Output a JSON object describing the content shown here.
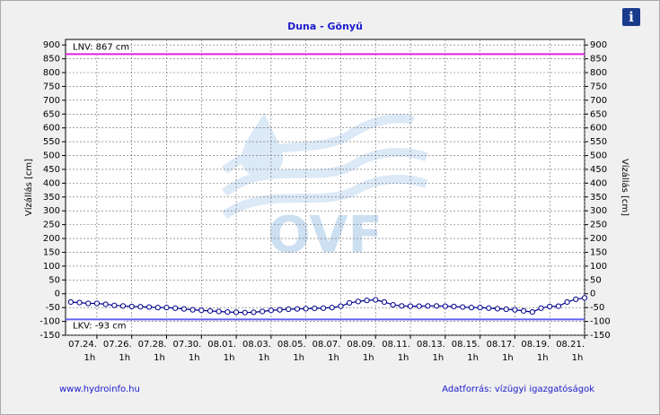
{
  "chart_data": {
    "type": "line",
    "title": "Duna - Gönyű",
    "ylabel": "Vízállás [cm]",
    "y2label": "Vízállás [cm]",
    "watermark": "OVF",
    "footer_left": "www.hydroinfo.hu",
    "footer_right": "Adatforrás: vízügyi igazgatóságok",
    "info_icon": "i",
    "xlim": [
      22.2,
      52
    ],
    "xticks": [
      {
        "value": 24,
        "label": "07.24.",
        "sublabel": "1h"
      },
      {
        "value": 26,
        "label": "07.26.",
        "sublabel": "1h"
      },
      {
        "value": 28,
        "label": "07.28.",
        "sublabel": "1h"
      },
      {
        "value": 30,
        "label": "07.30.",
        "sublabel": "1h"
      },
      {
        "value": 32,
        "label": "08.01.",
        "sublabel": "1h"
      },
      {
        "value": 34,
        "label": "08.03.",
        "sublabel": "1h"
      },
      {
        "value": 36,
        "label": "08.05.",
        "sublabel": "1h"
      },
      {
        "value": 38,
        "label": "08.07.",
        "sublabel": "1h"
      },
      {
        "value": 40,
        "label": "08.09.",
        "sublabel": "1h"
      },
      {
        "value": 42,
        "label": "08.11.",
        "sublabel": "1h"
      },
      {
        "value": 44,
        "label": "08.13.",
        "sublabel": "1h"
      },
      {
        "value": 46,
        "label": "08.15.",
        "sublabel": "1h"
      },
      {
        "value": 48,
        "label": "08.17.",
        "sublabel": "1h"
      },
      {
        "value": 50,
        "label": "08.19.",
        "sublabel": "1h"
      },
      {
        "value": 52,
        "label": "08.21.",
        "sublabel": "1h"
      }
    ],
    "ylim": [
      -150,
      920
    ],
    "yticks": [
      900,
      850,
      800,
      750,
      700,
      650,
      600,
      550,
      500,
      450,
      400,
      350,
      300,
      250,
      200,
      150,
      100,
      50,
      0,
      -50,
      -100,
      -150
    ],
    "y2lim": [
      -150,
      920
    ],
    "y2ticks": [
      900,
      850,
      800,
      750,
      700,
      650,
      600,
      550,
      500,
      450,
      400,
      350,
      300,
      250,
      200,
      150,
      100,
      50,
      0,
      -50,
      -100,
      -150
    ],
    "grid": true,
    "reference_lines": [
      {
        "label": "LNV: 867 cm",
        "value": 867,
        "color": "#e020e0"
      },
      {
        "label": "LKV: -93 cm",
        "value": -93,
        "color": "#6060f0"
      }
    ],
    "x": [
      22.5,
      23,
      23.5,
      24,
      24.5,
      25,
      25.5,
      26,
      26.5,
      27,
      27.5,
      28,
      28.5,
      29,
      29.5,
      30,
      30.5,
      31,
      31.5,
      32,
      32.5,
      33,
      33.5,
      34,
      34.5,
      35,
      35.5,
      36,
      36.5,
      37,
      37.5,
      38,
      38.5,
      39,
      39.5,
      40,
      40.5,
      41,
      41.5,
      42,
      42.5,
      43,
      43.5,
      44,
      44.5,
      45,
      45.5,
      46,
      46.5,
      47,
      47.5,
      48,
      48.5,
      49,
      49.5,
      50,
      50.5,
      51,
      51.5,
      52
    ],
    "series": [
      {
        "color": "#00008b",
        "values": [
          -30,
          -32,
          -35,
          -35,
          -38,
          -42,
          -44,
          -46,
          -47,
          -48,
          -50,
          -50,
          -52,
          -55,
          -58,
          -60,
          -62,
          -64,
          -66,
          -67,
          -68,
          -67,
          -64,
          -60,
          -58,
          -56,
          -55,
          -54,
          -53,
          -52,
          -50,
          -45,
          -33,
          -28,
          -24,
          -22,
          -30,
          -40,
          -44,
          -45,
          -45,
          -44,
          -44,
          -45,
          -46,
          -48,
          -50,
          -50,
          -52,
          -54,
          -56,
          -58,
          -62,
          -66,
          -52,
          -46,
          -45,
          -30,
          -20,
          -15
        ]
      }
    ]
  }
}
